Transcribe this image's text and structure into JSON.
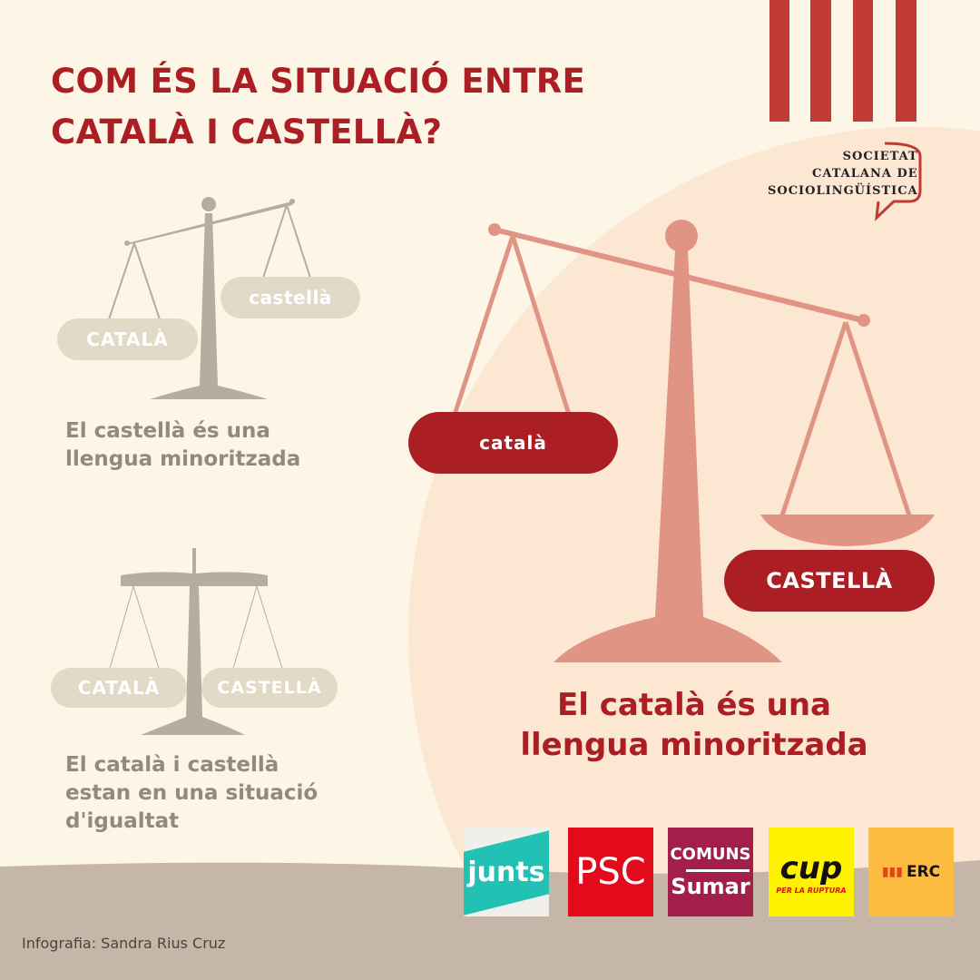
{
  "title": {
    "line1": "COM ÉS LA SITUACIÓ ENTRE",
    "line2": "CATALÀ I CASTELLÀ?"
  },
  "organization": {
    "line1": "SOCIETAT",
    "line2": "CATALANA DE",
    "line3": "SOCIOLINGÜÍSTICA"
  },
  "scale_1": {
    "left_label": "CATALÀ",
    "right_label": "castellà",
    "caption_line1": "El castellà és una",
    "caption_line2": "llengua minoritzada"
  },
  "scale_2": {
    "left_label": "CATALÀ",
    "right_label": "CASTELLÀ",
    "caption_line1": "El català i castellà",
    "caption_line2": "estan en una situació",
    "caption_line3": "d'igualtat"
  },
  "scale_main": {
    "left_label": "català",
    "right_label": "CASTELLÀ",
    "caption_line1": "El català és una",
    "caption_line2": "llengua minoritzada"
  },
  "party_logos": [
    {
      "name": "junts",
      "text": "junts",
      "color": "#22c1b3"
    },
    {
      "name": "psc",
      "text": "PSC",
      "color": "#e20a1b"
    },
    {
      "name": "comuns-sumar",
      "text": "COMUNS",
      "text2": "Sumar",
      "color": "#a31f4a"
    },
    {
      "name": "cup",
      "text": "cup",
      "text2": "PER LA RUPTURA",
      "color": "#fff200"
    },
    {
      "name": "erc",
      "text": "ERC",
      "color": "#fdbb3f"
    }
  ],
  "credit": "Infografia: Sandra Rius Cruz",
  "colors": {
    "accent": "#ab1f24",
    "background": "#fdf6e6",
    "scale_main": "#e09484",
    "scale_grey": "#b3ae9f",
    "stripes": "#c23a34"
  }
}
